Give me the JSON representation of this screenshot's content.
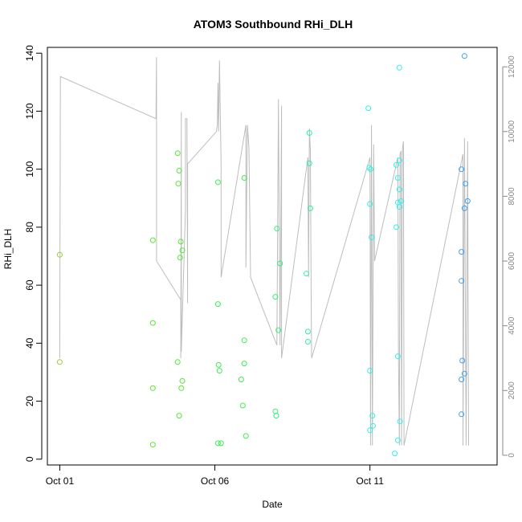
{
  "chart_data": {
    "type": "scatter",
    "title": "ATOM3 Southbound RHi_DLH",
    "xlabel": "Date",
    "ylabel": "RHi_DLH",
    "x_ticks": [
      {
        "day": 1,
        "label": "Oct 01"
      },
      {
        "day": 6,
        "label": "Oct 06"
      },
      {
        "day": 11,
        "label": "Oct 11"
      }
    ],
    "xlim_days": [
      0.6,
      15.1
    ],
    "ylim": [
      -2,
      142
    ],
    "y_ticks": [
      0,
      20,
      40,
      60,
      80,
      100,
      120,
      140
    ],
    "y2_label": "",
    "y2lim": [
      -300,
      12600
    ],
    "y2_ticks": [
      0,
      2000,
      4000,
      6000,
      8000,
      10000,
      12000
    ],
    "colors": {
      "altitude_line": "#bdbdbd",
      "axis": "#000000",
      "y2_axis": "#888888"
    },
    "altitude_series": {
      "description": "right axis",
      "points": [
        [
          1.0,
          3000
        ],
        [
          1.02,
          11700
        ],
        [
          4.1,
          10400
        ],
        [
          4.12,
          12300
        ],
        [
          4.12,
          7000
        ],
        [
          4.12,
          6000
        ],
        [
          4.9,
          4800
        ],
        [
          4.9,
          3000
        ],
        [
          4.92,
          10600
        ],
        [
          4.92,
          3200
        ],
        [
          5.05,
          7600
        ],
        [
          5.05,
          10400
        ],
        [
          5.1,
          10400
        ],
        [
          5.12,
          4700
        ],
        [
          5.12,
          9000
        ],
        [
          6.05,
          10000
        ],
        [
          6.08,
          10200
        ],
        [
          6.1,
          11500
        ],
        [
          6.12,
          10000
        ],
        [
          6.15,
          12200
        ],
        [
          6.2,
          9000
        ],
        [
          6.2,
          5500
        ],
        [
          7.0,
          10200
        ],
        [
          7.0,
          5800
        ],
        [
          7.05,
          10200
        ],
        [
          7.1,
          9500
        ],
        [
          7.15,
          5500
        ],
        [
          8.0,
          3400
        ],
        [
          8.05,
          11000
        ],
        [
          8.1,
          3400
        ],
        [
          8.15,
          10800
        ],
        [
          8.15,
          3000
        ],
        [
          9.0,
          9200
        ],
        [
          9.02,
          5500
        ],
        [
          9.05,
          10100
        ],
        [
          9.08,
          9400
        ],
        [
          9.1,
          5600
        ],
        [
          9.12,
          3000
        ],
        [
          11.0,
          9200
        ],
        [
          11.02,
          300
        ],
        [
          11.05,
          10200
        ],
        [
          11.08,
          300
        ],
        [
          11.1,
          4800
        ],
        [
          11.12,
          9600
        ],
        [
          11.15,
          6000
        ],
        [
          11.9,
          9200
        ],
        [
          11.92,
          3000
        ],
        [
          11.95,
          300
        ],
        [
          11.97,
          9300
        ],
        [
          12.0,
          9400
        ],
        [
          12.02,
          300
        ],
        [
          12.05,
          9500
        ],
        [
          12.08,
          9700
        ],
        [
          12.1,
          300
        ],
        [
          14.0,
          9300
        ],
        [
          14.0,
          300
        ],
        [
          14.05,
          9800
        ],
        [
          14.1,
          300
        ],
        [
          14.15,
          9700
        ],
        [
          14.18,
          300
        ]
      ]
    },
    "series": [
      {
        "values": [
          [
            1.0,
            70.5,
            "#9acd32"
          ],
          [
            1.0,
            33.5,
            "#9acd32"
          ],
          [
            4.0,
            75.5,
            "#55e632"
          ],
          [
            4.0,
            47.0,
            "#55e632"
          ],
          [
            4.0,
            24.5,
            "#55e632"
          ],
          [
            4.0,
            5.0,
            "#55e632"
          ],
          [
            4.8,
            105.5,
            "#55e632"
          ],
          [
            4.85,
            99.5,
            "#55e632"
          ],
          [
            4.82,
            95.0,
            "#55e632"
          ],
          [
            4.9,
            75.0,
            "#55e632"
          ],
          [
            4.95,
            72.0,
            "#55e632"
          ],
          [
            4.88,
            69.5,
            "#55e632"
          ],
          [
            4.8,
            33.5,
            "#55e632"
          ],
          [
            4.95,
            27.0,
            "#55e632"
          ],
          [
            4.92,
            24.5,
            "#55e632"
          ],
          [
            4.85,
            15.0,
            "#55e632"
          ],
          [
            6.1,
            95.5,
            "#3cf050"
          ],
          [
            6.1,
            53.5,
            "#3cf050"
          ],
          [
            6.12,
            32.5,
            "#3cf050"
          ],
          [
            6.15,
            30.5,
            "#3cf050"
          ],
          [
            6.1,
            5.5,
            "#3cf050"
          ],
          [
            6.2,
            5.5,
            "#3cf050"
          ],
          [
            6.95,
            97.0,
            "#3cf050"
          ],
          [
            6.95,
            41.0,
            "#3cf050"
          ],
          [
            6.95,
            33.0,
            "#3cf050"
          ],
          [
            6.85,
            27.5,
            "#3cf050"
          ],
          [
            6.9,
            18.5,
            "#3cf050"
          ],
          [
            7.0,
            8.0,
            "#3cf050"
          ],
          [
            8.0,
            79.5,
            "#30f07a"
          ],
          [
            8.1,
            67.5,
            "#30f07a"
          ],
          [
            7.95,
            56.0,
            "#30f07a"
          ],
          [
            8.05,
            44.5,
            "#30f07a"
          ],
          [
            7.95,
            16.5,
            "#30f07a"
          ],
          [
            7.98,
            15.0,
            "#30f07a"
          ],
          [
            9.05,
            112.5,
            "#30f0a0"
          ],
          [
            9.05,
            102.0,
            "#30f0a0"
          ],
          [
            9.08,
            86.5,
            "#30f0a0"
          ],
          [
            8.95,
            64.0,
            "#30f0a0"
          ],
          [
            9.0,
            44.0,
            "#30f0a0"
          ],
          [
            9.0,
            40.5,
            "#30f0a0"
          ],
          [
            10.95,
            121.0,
            "#30f0e0"
          ],
          [
            10.98,
            100.5,
            "#30f0e0"
          ],
          [
            11.02,
            100.0,
            "#30f0e0"
          ],
          [
            11.0,
            88.0,
            "#30f0e0"
          ],
          [
            11.05,
            76.5,
            "#30f0e0"
          ],
          [
            11.0,
            30.5,
            "#30f0e0"
          ],
          [
            11.08,
            15.0,
            "#30f0e0"
          ],
          [
            11.1,
            11.5,
            "#30f0e0"
          ],
          [
            11.0,
            10.0,
            "#30f0e0"
          ],
          [
            11.95,
            135.0,
            "#30f0f0"
          ],
          [
            11.85,
            101.5,
            "#30f0f0"
          ],
          [
            11.95,
            103.0,
            "#30f0f0"
          ],
          [
            11.9,
            97.0,
            "#30f0f0"
          ],
          [
            11.95,
            93.0,
            "#30f0f0"
          ],
          [
            11.9,
            88.5,
            "#30f0f0"
          ],
          [
            12.0,
            89.0,
            "#30f0f0"
          ],
          [
            11.95,
            87.0,
            "#30f0f0"
          ],
          [
            11.85,
            80.0,
            "#30f0f0"
          ],
          [
            11.9,
            35.5,
            "#30f0f0"
          ],
          [
            11.9,
            6.5,
            "#30f0f0"
          ],
          [
            11.97,
            13.0,
            "#30f0f0"
          ],
          [
            11.8,
            2.0,
            "#30f0f0"
          ],
          [
            14.05,
            139.0,
            "#3ca0f0"
          ],
          [
            13.95,
            100.0,
            "#3ca0f0"
          ],
          [
            14.08,
            95.0,
            "#3ca0f0"
          ],
          [
            14.15,
            89.0,
            "#3ca0f0"
          ],
          [
            14.05,
            86.5,
            "#3ca0f0"
          ],
          [
            13.95,
            71.5,
            "#3ca0f0"
          ],
          [
            13.95,
            61.5,
            "#3ca0f0"
          ],
          [
            13.98,
            34.0,
            "#3ca0f0"
          ],
          [
            14.05,
            29.5,
            "#3ca0f0"
          ],
          [
            13.95,
            27.5,
            "#3ca0f0"
          ],
          [
            13.95,
            15.5,
            "#3ca0f0"
          ]
        ]
      }
    ],
    "legend": "none",
    "grid": false
  }
}
